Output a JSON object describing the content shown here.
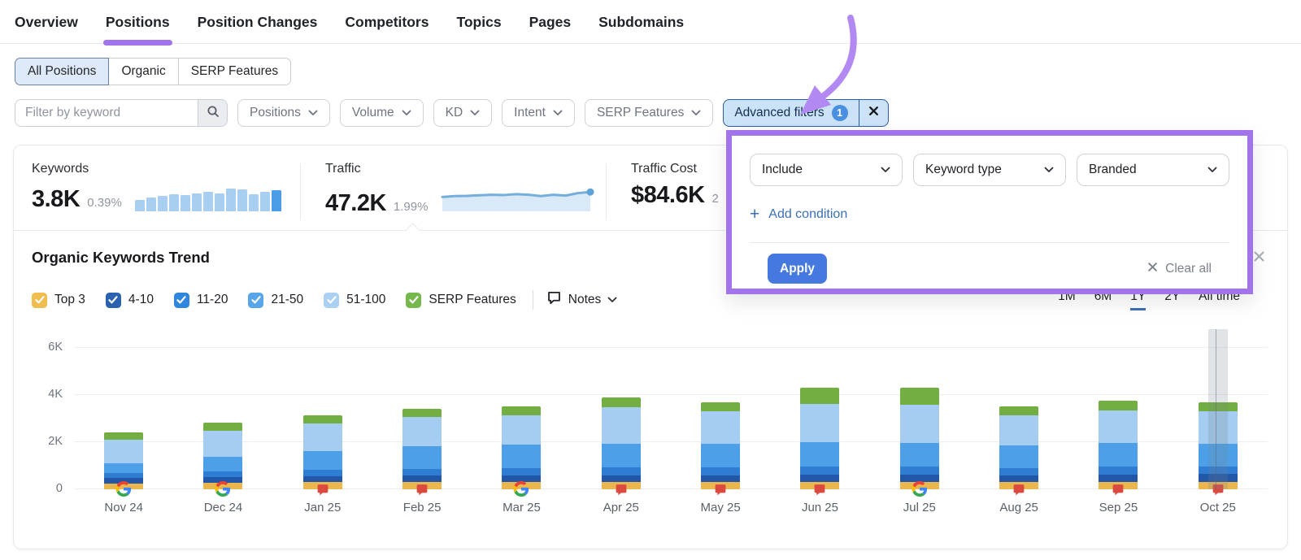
{
  "nav": {
    "tabs": [
      {
        "label": "Overview",
        "active": false
      },
      {
        "label": "Positions",
        "active": true
      },
      {
        "label": "Position Changes",
        "active": false
      },
      {
        "label": "Competitors",
        "active": false
      },
      {
        "label": "Topics",
        "active": false
      },
      {
        "label": "Pages",
        "active": false
      },
      {
        "label": "Subdomains",
        "active": false
      }
    ]
  },
  "position_type_tabs": {
    "options": [
      {
        "label": "All Positions",
        "selected": true
      },
      {
        "label": "Organic",
        "selected": false
      },
      {
        "label": "SERP Features",
        "selected": false
      }
    ]
  },
  "filter_bar": {
    "keyword_input": {
      "placeholder": "Filter by keyword",
      "value": ""
    },
    "dropdowns": [
      {
        "label": "Positions"
      },
      {
        "label": "Volume"
      },
      {
        "label": "KD"
      },
      {
        "label": "Intent"
      },
      {
        "label": "SERP Features"
      }
    ],
    "advanced_filters": {
      "label": "Advanced filters",
      "count": "1"
    }
  },
  "metrics": {
    "keywords": {
      "label": "Keywords",
      "value": "3.8K",
      "change": "0.39%",
      "spark_bars": [
        0.42,
        0.5,
        0.55,
        0.62,
        0.6,
        0.66,
        0.72,
        0.64,
        0.82,
        0.8,
        0.62,
        0.7,
        0.76
      ],
      "bar_color": "#A8CEF2",
      "last_bar_color": "#4C9DE8"
    },
    "traffic": {
      "label": "Traffic",
      "value": "47.2K",
      "change": "1.99%",
      "spark_line": [
        0.52,
        0.55,
        0.56,
        0.58,
        0.6,
        0.59,
        0.62,
        0.6,
        0.55,
        0.6,
        0.57,
        0.66,
        0.7
      ],
      "line_color": "#74AEDC",
      "fill_color": "#D9E9F8",
      "dot_color": "#5FA2D8"
    },
    "traffic_cost": {
      "label": "Traffic Cost",
      "value": "$84.6K",
      "change": "2"
    }
  },
  "advanced_filters_popup": {
    "condition": {
      "operator": "Include",
      "field": "Keyword type",
      "value": "Branded"
    },
    "add_condition_label": "Add condition",
    "apply_label": "Apply",
    "clear_all_label": "Clear all"
  },
  "trend_section": {
    "title": "Organic Keywords Trend",
    "legend": [
      {
        "label": "Top 3",
        "color": "#F0BE4E",
        "checked": true
      },
      {
        "label": "4-10",
        "color": "#2A62B0",
        "checked": true
      },
      {
        "label": "11-20",
        "color": "#2F87DD",
        "checked": true
      },
      {
        "label": "21-50",
        "color": "#57A6EA",
        "checked": true
      },
      {
        "label": "51-100",
        "color": "#ABD0F2",
        "checked": true
      },
      {
        "label": "SERP Features",
        "color": "#77B84D",
        "checked": true
      }
    ],
    "notes_label": "Notes",
    "time_ranges": [
      {
        "label": "1M",
        "active": false
      },
      {
        "label": "6M",
        "active": false
      },
      {
        "label": "1Y",
        "active": true
      },
      {
        "label": "2Y",
        "active": false
      },
      {
        "label": "All time",
        "active": false
      }
    ]
  },
  "chart_data": {
    "type": "bar",
    "stacked": true,
    "title": "Organic Keywords Trend",
    "categories": [
      "Nov 24",
      "Dec 24",
      "Jan 25",
      "Feb 25",
      "Mar 25",
      "Apr 25",
      "May 25",
      "Jun 25",
      "Jul 25",
      "Aug 25",
      "Sep 25",
      "Oct 25"
    ],
    "series": [
      {
        "name": "Top 3",
        "color": "#EBB64E",
        "values": [
          250,
          280,
          300,
          300,
          300,
          300,
          300,
          300,
          300,
          300,
          300,
          300
        ]
      },
      {
        "name": "4-10",
        "color": "#2257A8",
        "values": [
          220,
          240,
          250,
          280,
          300,
          300,
          300,
          320,
          320,
          300,
          330,
          340
        ]
      },
      {
        "name": "11-20",
        "color": "#2F7CD3",
        "values": [
          230,
          250,
          280,
          300,
          300,
          330,
          330,
          340,
          330,
          300,
          330,
          330
        ]
      },
      {
        "name": "21-50",
        "color": "#4DA0E8",
        "values": [
          400,
          600,
          780,
          950,
          1000,
          1000,
          1000,
          1050,
          1000,
          950,
          1000,
          950
        ]
      },
      {
        "name": "51-100",
        "color": "#A5CDF2",
        "values": [
          1000,
          1120,
          1170,
          1230,
          1250,
          1550,
          1380,
          1600,
          1650,
          1300,
          1400,
          1380
        ]
      },
      {
        "name": "SERP Features",
        "color": "#72AE41",
        "values": [
          300,
          350,
          350,
          350,
          350,
          400,
          390,
          690,
          700,
          350,
          400,
          380
        ]
      }
    ],
    "axis_markers": [
      "google",
      "google",
      "flag",
      "flag",
      "google",
      "flag",
      "flag",
      "flag",
      "google",
      "flag",
      "flag",
      "flag"
    ],
    "yticks": [
      {
        "label": "0",
        "value": 0
      },
      {
        "label": "2K",
        "value": 2000
      },
      {
        "label": "4K",
        "value": 4000
      },
      {
        "label": "6K",
        "value": 6000
      }
    ],
    "ylim": [
      0,
      6550
    ],
    "grid": true,
    "legend_position": "top-left",
    "highlighted_category": "Oct 25",
    "highlighted_index": 11
  },
  "accent_colors": {
    "purple": "#A274EB",
    "apply_blue": "#4579DF",
    "link_blue": "#3A6FB8",
    "badge_blue": "#4A90E2"
  }
}
